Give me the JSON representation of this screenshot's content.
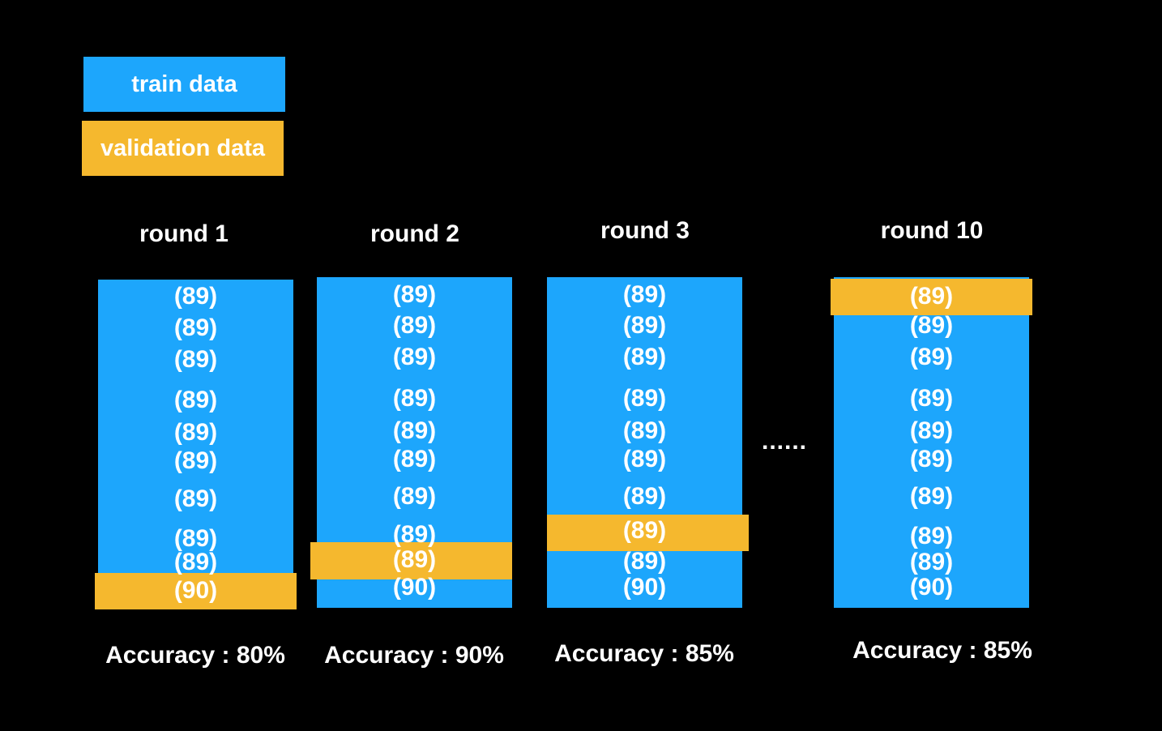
{
  "colors": {
    "train": "#1da6fc",
    "validation": "#f5b82e",
    "background": "#000000",
    "text": "#ffffff"
  },
  "legend": {
    "train_label": "train data",
    "validation_label": "validation data"
  },
  "ellipsis": "......",
  "rounds": [
    {
      "title": "round 1",
      "folds": [
        "(89)",
        "(89)",
        "(89)",
        "(89)",
        "(89)",
        "(89)",
        "(89)",
        "(89)",
        "(89)",
        "(90)"
      ],
      "validation_fold": 10,
      "accuracy": "Accuracy : 80%"
    },
    {
      "title": "round 2",
      "folds": [
        "(89)",
        "(89)",
        "(89)",
        "(89)",
        "(89)",
        "(89)",
        "(89)",
        "(89)",
        "(89)",
        "(90)"
      ],
      "validation_fold": 9,
      "accuracy": "Accuracy : 90%"
    },
    {
      "title": "round 3",
      "folds": [
        "(89)",
        "(89)",
        "(89)",
        "(89)",
        "(89)",
        "(89)",
        "(89)",
        "(89)",
        "(89)",
        "(90)"
      ],
      "validation_fold": 8,
      "accuracy": "Accuracy : 85%"
    },
    {
      "title": "round 10",
      "folds": [
        "(89)",
        "(89)",
        "(89)",
        "(89)",
        "(89)",
        "(89)",
        "(89)",
        "(89)",
        "(89)",
        "(90)"
      ],
      "validation_fold": 1,
      "accuracy": "Accuracy : 85%"
    }
  ]
}
